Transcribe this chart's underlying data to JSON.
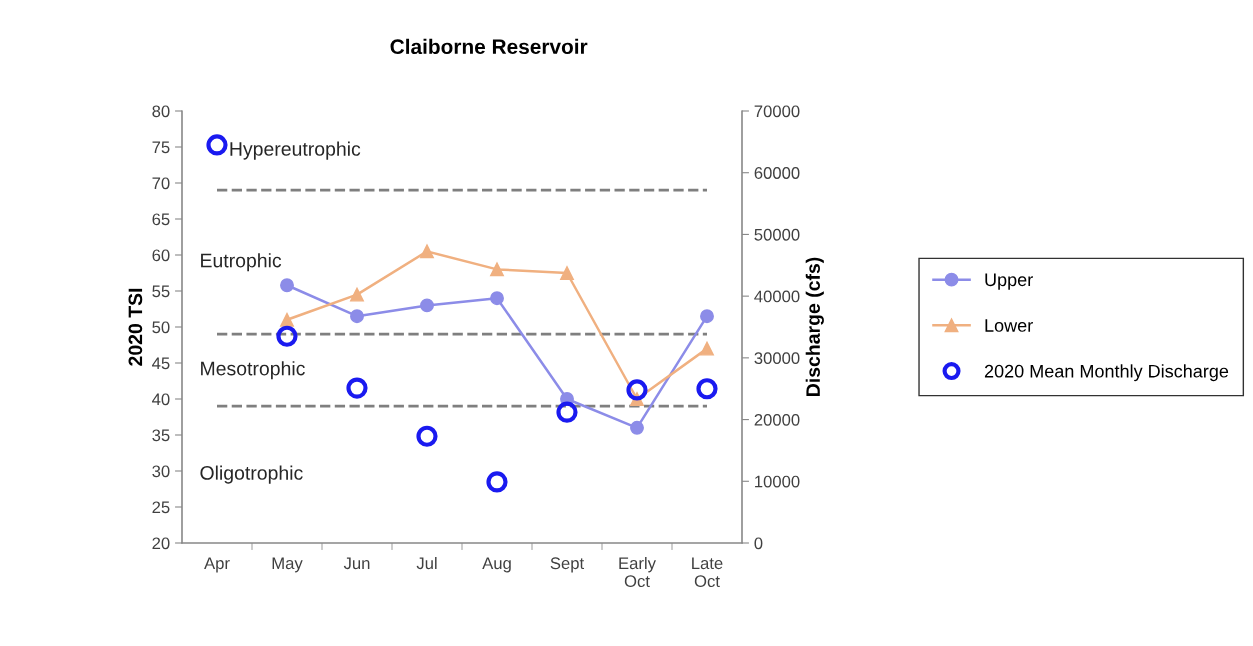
{
  "chart_data": {
    "type": "line",
    "title": "Claiborne Reservoir",
    "ylabel": "2020 TSI",
    "y2label": "Discharge (cfs)",
    "categories": [
      "Apr",
      "May",
      "Jun",
      "Jul",
      "Aug",
      "Sept",
      "Early\nOct",
      "Late\nOct"
    ],
    "series": [
      {
        "name": "Upper",
        "color": "#8c8ce8",
        "marker": "circle",
        "values": [
          null,
          55.8,
          51.5,
          53,
          54,
          40,
          36,
          51.5
        ]
      },
      {
        "name": "Lower",
        "color": "#f0b080",
        "marker": "triangle",
        "values": [
          null,
          51,
          54.5,
          60.5,
          58,
          57.5,
          40,
          47
        ]
      },
      {
        "name": "2020 Mean Monthly Discharge",
        "type": "scatter",
        "axis": "y2",
        "color": "#1a1af0",
        "marker": "circle",
        "values": [
          64500,
          33500,
          25100,
          17300,
          9900,
          21200,
          24800,
          25000
        ]
      }
    ],
    "ylim": [
      20,
      80
    ],
    "yticks": [
      20,
      25,
      30,
      35,
      40,
      45,
      50,
      55,
      60,
      65,
      70,
      75,
      80
    ],
    "y2lim": [
      0,
      70000
    ],
    "y2ticks": [
      0,
      10000,
      20000,
      30000,
      40000,
      50000,
      60000,
      70000
    ],
    "ref_lines": [
      {
        "axis": "y",
        "value": 69,
        "color": "#7f7f7f",
        "line_style": "dashed"
      },
      {
        "axis": "y",
        "value": 49,
        "color": "#7f7f7f",
        "line_style": "dashed"
      },
      {
        "axis": "y",
        "value": 39,
        "color": "#7f7f7f",
        "line_style": "dashed"
      }
    ],
    "annotations": [
      "Hypereutrophic",
      "Eutrophic",
      "Mesotrophic",
      "Oligotrophic"
    ],
    "legend": "right",
    "grid": false
  }
}
